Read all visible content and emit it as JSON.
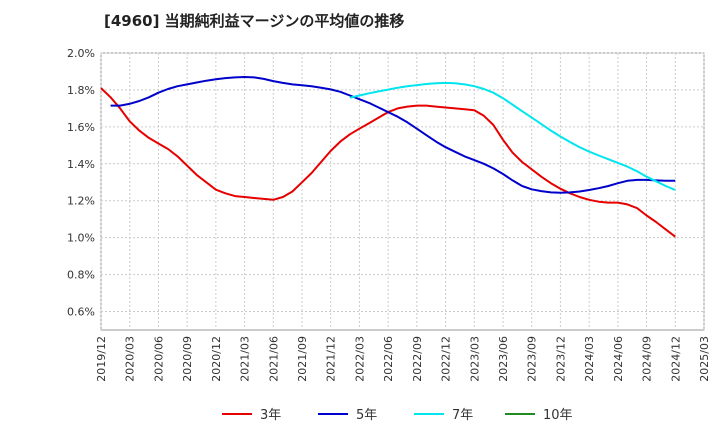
{
  "chart_data": {
    "type": "line",
    "title": "[4960]  当期純利益マージンの平均値の推移",
    "xlabel": "",
    "ylabel": "",
    "ylim": [
      0.5,
      2.0
    ],
    "yticks": [
      "0.6%",
      "0.8%",
      "1.0%",
      "1.2%",
      "1.4%",
      "1.6%",
      "1.8%",
      "2.0%"
    ],
    "ytick_values": [
      0.6,
      0.8,
      1.0,
      1.2,
      1.4,
      1.6,
      1.8,
      2.0
    ],
    "x_range": [
      "2019/12",
      "2025/03"
    ],
    "xticks": [
      "2019/12",
      "2020/03",
      "2020/06",
      "2020/09",
      "2020/12",
      "2021/03",
      "2021/06",
      "2021/09",
      "2021/12",
      "2022/03",
      "2022/06",
      "2022/09",
      "2022/12",
      "2023/03",
      "2023/06",
      "2023/09",
      "2023/12",
      "2024/03",
      "2024/06",
      "2024/09",
      "2024/12",
      "2025/03"
    ],
    "grid": true,
    "legend_position": "bottom",
    "series": [
      {
        "name": "3年",
        "color": "#e60000",
        "points": [
          [
            "2019/12",
            1.81
          ],
          [
            "2020/01",
            1.76
          ],
          [
            "2020/02",
            1.7
          ],
          [
            "2020/03",
            1.63
          ],
          [
            "2020/04",
            1.58
          ],
          [
            "2020/05",
            1.54
          ],
          [
            "2020/06",
            1.51
          ],
          [
            "2020/07",
            1.48
          ],
          [
            "2020/08",
            1.44
          ],
          [
            "2020/09",
            1.39
          ],
          [
            "2020/10",
            1.34
          ],
          [
            "2020/11",
            1.3
          ],
          [
            "2020/12",
            1.26
          ],
          [
            "2021/01",
            1.24
          ],
          [
            "2021/02",
            1.225
          ],
          [
            "2021/03",
            1.22
          ],
          [
            "2021/04",
            1.215
          ],
          [
            "2021/05",
            1.21
          ],
          [
            "2021/06",
            1.205
          ],
          [
            "2021/07",
            1.22
          ],
          [
            "2021/08",
            1.25
          ],
          [
            "2021/09",
            1.3
          ],
          [
            "2021/10",
            1.35
          ],
          [
            "2021/11",
            1.41
          ],
          [
            "2021/12",
            1.47
          ],
          [
            "2022/01",
            1.52
          ],
          [
            "2022/02",
            1.56
          ],
          [
            "2022/03",
            1.59
          ],
          [
            "2022/04",
            1.62
          ],
          [
            "2022/05",
            1.65
          ],
          [
            "2022/06",
            1.68
          ],
          [
            "2022/07",
            1.7
          ],
          [
            "2022/08",
            1.71
          ],
          [
            "2022/09",
            1.715
          ],
          [
            "2022/10",
            1.715
          ],
          [
            "2022/11",
            1.71
          ],
          [
            "2022/12",
            1.705
          ],
          [
            "2023/01",
            1.7
          ],
          [
            "2023/02",
            1.695
          ],
          [
            "2023/03",
            1.69
          ],
          [
            "2023/04",
            1.66
          ],
          [
            "2023/05",
            1.61
          ],
          [
            "2023/06",
            1.53
          ],
          [
            "2023/07",
            1.46
          ],
          [
            "2023/08",
            1.41
          ],
          [
            "2023/09",
            1.37
          ],
          [
            "2023/10",
            1.33
          ],
          [
            "2023/11",
            1.295
          ],
          [
            "2023/12",
            1.265
          ],
          [
            "2024/01",
            1.24
          ],
          [
            "2024/02",
            1.22
          ],
          [
            "2024/03",
            1.205
          ],
          [
            "2024/04",
            1.195
          ],
          [
            "2024/05",
            1.19
          ],
          [
            "2024/06",
            1.19
          ],
          [
            "2024/07",
            1.18
          ],
          [
            "2024/08",
            1.16
          ],
          [
            "2024/09",
            1.12
          ],
          [
            "2024/10",
            1.085
          ],
          [
            "2024/11",
            1.045
          ],
          [
            "2024/12",
            1.005
          ]
        ]
      },
      {
        "name": "5年",
        "color": "#0000cc",
        "points": [
          [
            "2020/01",
            1.715
          ],
          [
            "2020/02",
            1.715
          ],
          [
            "2020/03",
            1.725
          ],
          [
            "2020/04",
            1.74
          ],
          [
            "2020/05",
            1.76
          ],
          [
            "2020/06",
            1.785
          ],
          [
            "2020/07",
            1.805
          ],
          [
            "2020/08",
            1.82
          ],
          [
            "2020/09",
            1.83
          ],
          [
            "2020/10",
            1.84
          ],
          [
            "2020/11",
            1.85
          ],
          [
            "2020/12",
            1.858
          ],
          [
            "2021/01",
            1.864
          ],
          [
            "2021/02",
            1.868
          ],
          [
            "2021/03",
            1.87
          ],
          [
            "2021/04",
            1.868
          ],
          [
            "2021/05",
            1.86
          ],
          [
            "2021/06",
            1.848
          ],
          [
            "2021/07",
            1.838
          ],
          [
            "2021/08",
            1.83
          ],
          [
            "2021/09",
            1.825
          ],
          [
            "2021/10",
            1.82
          ],
          [
            "2021/11",
            1.812
          ],
          [
            "2021/12",
            1.803
          ],
          [
            "2022/01",
            1.79
          ],
          [
            "2022/02",
            1.77
          ],
          [
            "2022/03",
            1.75
          ],
          [
            "2022/04",
            1.73
          ],
          [
            "2022/05",
            1.705
          ],
          [
            "2022/06",
            1.68
          ],
          [
            "2022/07",
            1.655
          ],
          [
            "2022/08",
            1.625
          ],
          [
            "2022/09",
            1.59
          ],
          [
            "2022/10",
            1.555
          ],
          [
            "2022/11",
            1.52
          ],
          [
            "2022/12",
            1.49
          ],
          [
            "2023/01",
            1.465
          ],
          [
            "2023/02",
            1.44
          ],
          [
            "2023/03",
            1.42
          ],
          [
            "2023/04",
            1.4
          ],
          [
            "2023/05",
            1.375
          ],
          [
            "2023/06",
            1.345
          ],
          [
            "2023/07",
            1.31
          ],
          [
            "2023/08",
            1.28
          ],
          [
            "2023/09",
            1.262
          ],
          [
            "2023/10",
            1.252
          ],
          [
            "2023/11",
            1.245
          ],
          [
            "2023/12",
            1.243
          ],
          [
            "2024/01",
            1.245
          ],
          [
            "2024/02",
            1.25
          ],
          [
            "2024/03",
            1.258
          ],
          [
            "2024/04",
            1.268
          ],
          [
            "2024/05",
            1.28
          ],
          [
            "2024/06",
            1.295
          ],
          [
            "2024/07",
            1.308
          ],
          [
            "2024/08",
            1.313
          ],
          [
            "2024/09",
            1.313
          ],
          [
            "2024/10",
            1.31
          ],
          [
            "2024/11",
            1.308
          ],
          [
            "2024/12",
            1.308
          ]
        ]
      },
      {
        "name": "7年",
        "color": "#00e5ee",
        "points": [
          [
            "2022/02",
            1.758
          ],
          [
            "2022/03",
            1.77
          ],
          [
            "2022/04",
            1.782
          ],
          [
            "2022/05",
            1.792
          ],
          [
            "2022/06",
            1.802
          ],
          [
            "2022/07",
            1.812
          ],
          [
            "2022/08",
            1.82
          ],
          [
            "2022/09",
            1.826
          ],
          [
            "2022/10",
            1.832
          ],
          [
            "2022/11",
            1.836
          ],
          [
            "2022/12",
            1.838
          ],
          [
            "2023/01",
            1.836
          ],
          [
            "2023/02",
            1.83
          ],
          [
            "2023/03",
            1.82
          ],
          [
            "2023/04",
            1.805
          ],
          [
            "2023/05",
            1.785
          ],
          [
            "2023/06",
            1.755
          ],
          [
            "2023/07",
            1.72
          ],
          [
            "2023/08",
            1.685
          ],
          [
            "2023/09",
            1.65
          ],
          [
            "2023/10",
            1.615
          ],
          [
            "2023/11",
            1.58
          ],
          [
            "2023/12",
            1.548
          ],
          [
            "2024/01",
            1.518
          ],
          [
            "2024/02",
            1.49
          ],
          [
            "2024/03",
            1.466
          ],
          [
            "2024/04",
            1.445
          ],
          [
            "2024/05",
            1.425
          ],
          [
            "2024/06",
            1.405
          ],
          [
            "2024/07",
            1.385
          ],
          [
            "2024/08",
            1.36
          ],
          [
            "2024/09",
            1.33
          ],
          [
            "2024/10",
            1.305
          ],
          [
            "2024/11",
            1.28
          ],
          [
            "2024/12",
            1.258
          ]
        ]
      },
      {
        "name": "10年",
        "color": "#228b22",
        "points": []
      }
    ]
  }
}
